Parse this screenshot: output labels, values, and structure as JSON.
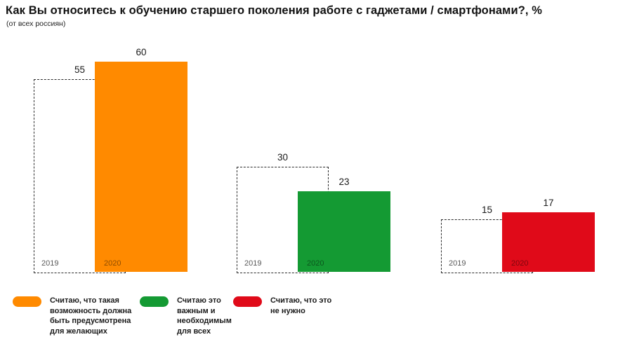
{
  "title": "Как Вы относитесь к обучению старшего поколения работе с гаджетами / смартфонами?, %",
  "subtitle": "(от всех россиян)",
  "chart_data": {
    "type": "bar",
    "unit": "%",
    "title": "Как Вы относитесь к обучению старшего поколения работе с гаджетами / смартфонами?, %",
    "subtitle": "(от всех россиян)",
    "categories": [
      "Считаю, что такая возможность должна быть предусмотрена для желающих",
      "Считаю это важным и необходимым для всех",
      "Считаю, что это не нужно"
    ],
    "series": [
      {
        "name": "2019",
        "style": "dashed-outline",
        "values": [
          55,
          30,
          15
        ]
      },
      {
        "name": "2020",
        "style": "solid-fill",
        "values": [
          60,
          23,
          17
        ]
      }
    ],
    "value_labels": true,
    "ylim": [
      0,
      62
    ],
    "grid": false,
    "legend_position": "bottom"
  },
  "legend": [
    {
      "label": "Считаю, что такая\nвозможность должна\nбыть предусмотрена\nдля желающих",
      "color": "#FF8A00"
    },
    {
      "label": "Считаю это\nважным и\nнеобходимым\nдля всех",
      "color": "#149A33"
    },
    {
      "label": "Считаю, что это\nне нужно",
      "color": "#E00A19"
    }
  ],
  "colors": {
    "bar_2020_option1": "#FF8A00",
    "bar_2020_option2": "#149A33",
    "bar_2020_option3": "#E00A19",
    "bar_2019_outline": "#2B2B2B",
    "year_2019_text": "#595959",
    "text": "#1A1A1A"
  }
}
